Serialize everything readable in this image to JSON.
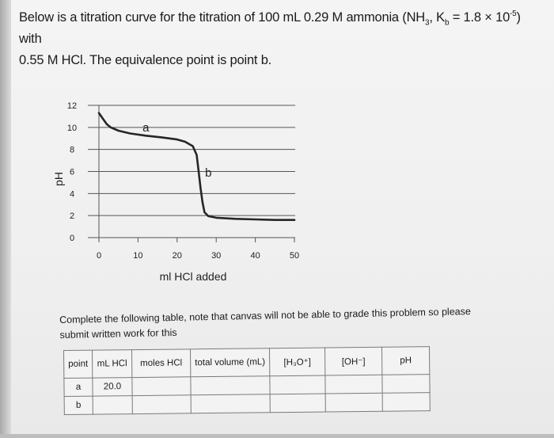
{
  "problem": {
    "line1_pre": "Below is a titration curve for the titration of 100 mL 0.29 M ammonia (NH",
    "nh3_sub": "3",
    "mid": ", K",
    "kb_sub": "b",
    "kb_eq": " = 1.8 × 10",
    "kb_exp": "-5",
    "line1_end": ") with",
    "line2": "0.55 M HCl.  The equivalence point is point b."
  },
  "chart_data": {
    "type": "line",
    "title": "",
    "xlabel": "ml HCl added",
    "ylabel": "pH",
    "xlim": [
      0,
      50
    ],
    "ylim": [
      0,
      12
    ],
    "x_ticks": [
      "0",
      "10",
      "20",
      "30",
      "40",
      "50"
    ],
    "y_ticks": [
      "0",
      "2",
      "4",
      "6",
      "8",
      "10",
      "12"
    ],
    "grid": "horizontal",
    "series": [
      {
        "x": [
          0,
          1,
          2,
          3,
          5,
          8,
          12,
          16,
          20,
          22,
          24,
          25,
          25.5,
          26,
          26.5,
          27,
          28,
          30,
          35,
          40,
          45,
          50
        ],
        "y": [
          11.3,
          10.8,
          10.3,
          10.0,
          9.7,
          9.45,
          9.25,
          9.1,
          8.9,
          8.7,
          8.3,
          7.5,
          6.0,
          4.5,
          3.2,
          2.3,
          1.95,
          1.8,
          1.7,
          1.65,
          1.6,
          1.6
        ]
      }
    ],
    "annotations": [
      {
        "text": "a",
        "x": 12,
        "y": 10
      },
      {
        "text": "b",
        "x": 28,
        "y": 5.9
      }
    ]
  },
  "instructions": {
    "line1": "Complete the following table, note that canvas will not be able to grade this problem so please",
    "line2": "submit written work for this"
  },
  "table": {
    "headers": [
      "point",
      "mL HCl",
      "moles HCl",
      "total volume (mL)",
      "[H₃O⁺]",
      "[OH⁻]",
      "pH"
    ],
    "rows": [
      [
        "a",
        "20.0",
        "",
        "",
        "",
        "",
        ""
      ],
      [
        "b",
        "",
        "",
        "",
        "",
        "",
        ""
      ]
    ]
  }
}
